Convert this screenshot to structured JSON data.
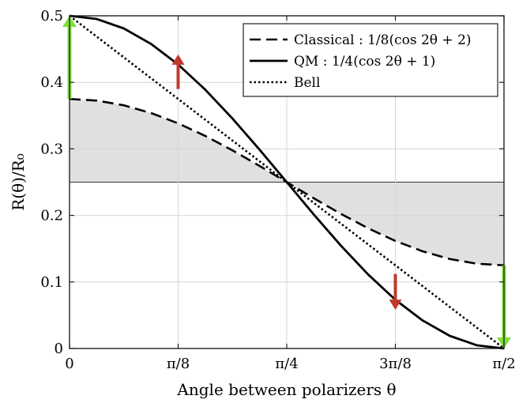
{
  "chart_data": {
    "type": "line",
    "title": "",
    "xlabel": "Angle between polarizers θ",
    "ylabel": "R(θ)/R₀",
    "xlim": [
      0,
      1.5708
    ],
    "ylim": [
      0,
      0.5
    ],
    "grid": true,
    "legend_position": "top-right",
    "x_ticks": [
      {
        "value": 0,
        "label": "0"
      },
      {
        "value": 0.3927,
        "label": "π/8"
      },
      {
        "value": 0.7854,
        "label": "π/4"
      },
      {
        "value": 1.1781,
        "label": "3π/8"
      },
      {
        "value": 1.5708,
        "label": "π/2"
      }
    ],
    "y_ticks": [
      {
        "value": 0,
        "label": "0"
      },
      {
        "value": 0.1,
        "label": "0.1"
      },
      {
        "value": 0.2,
        "label": "0.2"
      },
      {
        "value": 0.3,
        "label": "0.3"
      },
      {
        "value": 0.4,
        "label": "0.4"
      },
      {
        "value": 0.5,
        "label": "0.5"
      }
    ],
    "series": [
      {
        "name": "Classical : 1/8(cos 2θ + 2)",
        "style": "dashed",
        "x": [
          0,
          0.0982,
          0.1963,
          0.2945,
          0.3927,
          0.4909,
          0.589,
          0.6872,
          0.7854,
          0.8836,
          0.9817,
          1.0799,
          1.1781,
          1.2763,
          1.3744,
          1.4726,
          1.5708
        ],
        "values": [
          0.375,
          0.3726,
          0.3655,
          0.3539,
          0.3384,
          0.3194,
          0.2978,
          0.2744,
          0.25,
          0.2256,
          0.2022,
          0.1806,
          0.1616,
          0.1461,
          0.1345,
          0.1274,
          0.125
        ]
      },
      {
        "name": "QM : 1/4(cos 2θ + 1)",
        "style": "solid",
        "x": [
          0,
          0.0982,
          0.1963,
          0.2945,
          0.3927,
          0.4909,
          0.589,
          0.6872,
          0.7854,
          0.8836,
          0.9817,
          1.0799,
          1.1781,
          1.2763,
          1.3744,
          1.4726,
          1.5708
        ],
        "values": [
          0.5,
          0.4952,
          0.481,
          0.4578,
          0.4268,
          0.3889,
          0.3457,
          0.2988,
          0.25,
          0.2012,
          0.1543,
          0.1111,
          0.0732,
          0.0422,
          0.019,
          0.0048,
          0
        ]
      },
      {
        "name": "Bell",
        "style": "dotted",
        "x": [
          0,
          1.5708
        ],
        "values": [
          0.5,
          0
        ]
      }
    ],
    "band": {
      "from_series": "Classical : 1/8(cos 2θ + 2)",
      "to_value": 0.25,
      "color": "#e0e0e0"
    },
    "annotations": [
      {
        "kind": "arrow",
        "color": "#c0392b",
        "x": 0.3927,
        "y_from": 0.39,
        "y_to": 0.442
      },
      {
        "kind": "arrow",
        "color": "#c0392b",
        "x": 1.1781,
        "y_from": 0.112,
        "y_to": 0.058
      },
      {
        "kind": "arrow",
        "color": "#7fe03a",
        "x": 0,
        "y_from": 0.375,
        "y_to": 0.5
      },
      {
        "kind": "arrow",
        "color": "#7fe03a",
        "x": 1.5708,
        "y_from": 0.125,
        "y_to": 0.0
      }
    ]
  }
}
